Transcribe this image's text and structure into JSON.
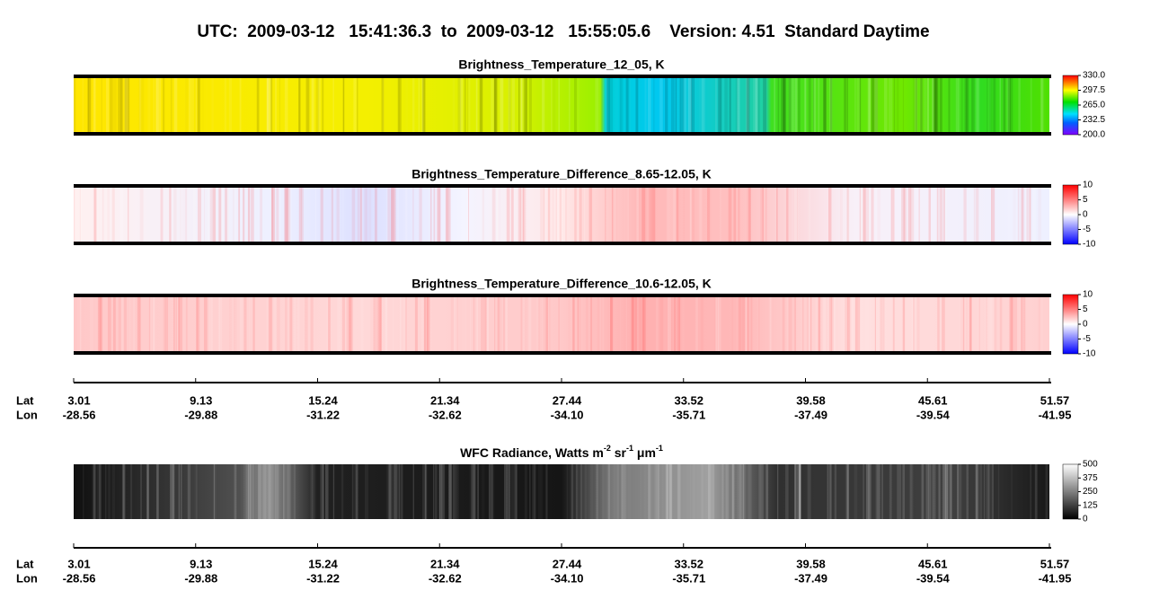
{
  "title": "UTC:  2009-03-12   15:41:36.3  to  2009-03-12   15:55:05.6    Version: 4.51  Standard Daytime",
  "panels": [
    {
      "title": "Brightness_Temperature_12_05, K",
      "colorbar": {
        "lim": [
          200,
          330
        ],
        "ticks": [
          {
            "value": 330,
            "label": "330.0"
          },
          {
            "value": 297.5,
            "label": "297.5"
          },
          {
            "value": 265,
            "label": "265.0"
          },
          {
            "value": 232.5,
            "label": "232.5"
          },
          {
            "value": 200,
            "label": "200.0"
          }
        ]
      }
    },
    {
      "title": "Brightness_Temperature_Difference_8.65-12.05, K",
      "colorbar": {
        "lim": [
          -10,
          10
        ],
        "ticks": [
          10,
          5,
          0,
          -5,
          -10
        ]
      }
    },
    {
      "title": "Brightness_Temperature_Difference_10.6-12.05, K",
      "colorbar": {
        "lim": [
          -10,
          10
        ],
        "ticks": [
          10,
          5,
          0,
          -5,
          -10
        ]
      }
    },
    {
      "title_parts": [
        "WFC Radiance, Watts m",
        "-2",
        " sr",
        "-1",
        " μm",
        "-1"
      ],
      "colorbar": {
        "lim": [
          0,
          500
        ],
        "ticks": [
          500,
          375,
          250,
          125,
          0
        ]
      }
    }
  ],
  "axis": {
    "row_labels": [
      "Lat",
      "Lon"
    ],
    "lat": [
      3.01,
      9.13,
      15.24,
      21.34,
      27.44,
      33.52,
      39.58,
      45.61,
      51.57
    ],
    "lon": [
      -28.56,
      -29.88,
      -31.22,
      -32.62,
      {
        "value": -34.1,
        "label": "-34.10"
      },
      -35.71,
      -37.49,
      -39.54,
      -41.95
    ]
  }
}
